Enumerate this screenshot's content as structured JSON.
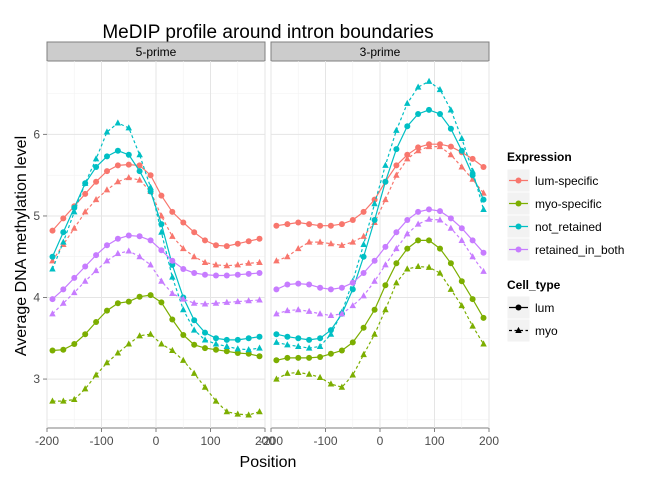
{
  "chart_data": {
    "type": "line",
    "title": "MeDIP profile around intron boundaries",
    "xlabel": "Position",
    "ylabel": "Average DNA methylation level",
    "xlim": [
      -200,
      200
    ],
    "ylim": [
      2.4,
      6.9
    ],
    "x_ticks": [
      -200,
      -100,
      0,
      100,
      200
    ],
    "y_ticks": [
      3,
      4,
      5,
      6
    ],
    "grid": true,
    "legend_position": "right",
    "facets": [
      "5-prime",
      "3-prime"
    ],
    "x": [
      -190,
      -170,
      -150,
      -130,
      -110,
      -90,
      -70,
      -50,
      -30,
      -10,
      10,
      30,
      50,
      70,
      90,
      110,
      130,
      150,
      170,
      190
    ],
    "legend": {
      "expression_title": "Expression",
      "expression_items": [
        {
          "label": "lum-specific",
          "color": "#F8766D"
        },
        {
          "label": "myo-specific",
          "color": "#7CAE00"
        },
        {
          "label": "not_retained",
          "color": "#00BFC4"
        },
        {
          "label": "retained_in_both",
          "color": "#C77CFF"
        }
      ],
      "cell_type_title": "Cell_type",
      "cell_type_items": [
        {
          "label": "lum",
          "shape": "circle",
          "line": "solid"
        },
        {
          "label": "myo",
          "shape": "triangle",
          "line": "dashed"
        }
      ]
    },
    "panels": [
      {
        "facet": "5-prime",
        "series": [
          {
            "expression": "lum-specific",
            "cell_type": "lum",
            "values": [
              4.82,
              4.97,
              5.12,
              5.27,
              5.42,
              5.55,
              5.62,
              5.63,
              5.62,
              5.5,
              5.25,
              5.05,
              4.92,
              4.8,
              4.7,
              4.64,
              4.63,
              4.66,
              4.69,
              4.72
            ]
          },
          {
            "expression": "lum-specific",
            "cell_type": "myo",
            "values": [
              4.45,
              4.65,
              4.85,
              5.05,
              5.2,
              5.32,
              5.42,
              5.47,
              5.44,
              5.3,
              5.0,
              4.75,
              4.6,
              4.5,
              4.43,
              4.4,
              4.39,
              4.4,
              4.42,
              4.43
            ]
          },
          {
            "expression": "myo-specific",
            "cell_type": "lum",
            "values": [
              3.35,
              3.36,
              3.43,
              3.55,
              3.7,
              3.84,
              3.93,
              3.95,
              4.01,
              4.03,
              3.94,
              3.73,
              3.54,
              3.42,
              3.38,
              3.36,
              3.34,
              3.32,
              3.31,
              3.28
            ]
          },
          {
            "expression": "myo-specific",
            "cell_type": "myo",
            "values": [
              2.73,
              2.73,
              2.75,
              2.88,
              3.05,
              3.2,
              3.32,
              3.43,
              3.53,
              3.55,
              3.43,
              3.35,
              3.23,
              3.07,
              2.9,
              2.73,
              2.6,
              2.57,
              2.56,
              2.6
            ]
          },
          {
            "expression": "not_retained",
            "cell_type": "lum",
            "values": [
              4.5,
              4.8,
              5.1,
              5.4,
              5.6,
              5.73,
              5.8,
              5.75,
              5.55,
              5.3,
              4.9,
              4.4,
              4.0,
              3.72,
              3.57,
              3.5,
              3.48,
              3.48,
              3.5,
              3.52
            ]
          },
          {
            "expression": "not_retained",
            "cell_type": "myo",
            "values": [
              4.35,
              4.68,
              5.05,
              5.4,
              5.7,
              6.03,
              6.14,
              6.08,
              5.75,
              5.35,
              4.8,
              4.25,
              3.85,
              3.6,
              3.48,
              3.43,
              3.4,
              3.37,
              3.36,
              3.38
            ]
          },
          {
            "expression": "retained_in_both",
            "cell_type": "lum",
            "values": [
              3.98,
              4.1,
              4.24,
              4.38,
              4.52,
              4.64,
              4.72,
              4.76,
              4.75,
              4.7,
              4.58,
              4.45,
              4.35,
              4.3,
              4.28,
              4.27,
              4.27,
              4.28,
              4.29,
              4.3
            ]
          },
          {
            "expression": "retained_in_both",
            "cell_type": "myo",
            "values": [
              3.8,
              3.93,
              4.06,
              4.2,
              4.33,
              4.45,
              4.54,
              4.57,
              4.5,
              4.4,
              4.2,
              4.05,
              3.98,
              3.93,
              3.92,
              3.93,
              3.94,
              3.95,
              3.96,
              3.97
            ]
          }
        ]
      },
      {
        "facet": "3-prime",
        "series": [
          {
            "expression": "lum-specific",
            "cell_type": "lum",
            "values": [
              4.88,
              4.9,
              4.92,
              4.9,
              4.88,
              4.88,
              4.9,
              4.95,
              5.05,
              5.2,
              5.42,
              5.62,
              5.75,
              5.84,
              5.88,
              5.88,
              5.85,
              5.78,
              5.7,
              5.6
            ]
          },
          {
            "expression": "lum-specific",
            "cell_type": "myo",
            "values": [
              4.45,
              4.5,
              4.6,
              4.68,
              4.68,
              4.66,
              4.64,
              4.68,
              4.75,
              4.92,
              5.2,
              5.5,
              5.7,
              5.8,
              5.85,
              5.85,
              5.75,
              5.6,
              5.45,
              5.28
            ]
          },
          {
            "expression": "myo-specific",
            "cell_type": "lum",
            "values": [
              3.23,
              3.26,
              3.26,
              3.26,
              3.27,
              3.31,
              3.35,
              3.45,
              3.63,
              3.85,
              4.15,
              4.42,
              4.6,
              4.7,
              4.7,
              4.6,
              4.42,
              4.2,
              3.98,
              3.75
            ]
          },
          {
            "expression": "myo-specific",
            "cell_type": "myo",
            "values": [
              3.0,
              3.07,
              3.08,
              3.06,
              3.02,
              2.94,
              2.9,
              3.05,
              3.3,
              3.55,
              3.85,
              4.18,
              4.35,
              4.38,
              4.37,
              4.3,
              4.1,
              3.9,
              3.65,
              3.43
            ]
          },
          {
            "expression": "not_retained",
            "cell_type": "lum",
            "values": [
              3.55,
              3.52,
              3.5,
              3.48,
              3.5,
              3.6,
              3.8,
              4.1,
              4.5,
              4.95,
              5.42,
              5.82,
              6.1,
              6.25,
              6.3,
              6.25,
              6.07,
              5.8,
              5.5,
              5.2
            ]
          },
          {
            "expression": "not_retained",
            "cell_type": "myo",
            "values": [
              3.45,
              3.42,
              3.4,
              3.38,
              3.4,
              3.55,
              3.82,
              4.2,
              4.65,
              5.15,
              5.62,
              6.05,
              6.38,
              6.58,
              6.65,
              6.55,
              6.3,
              5.95,
              5.55,
              5.08
            ]
          },
          {
            "expression": "retained_in_both",
            "cell_type": "lum",
            "values": [
              4.1,
              4.16,
              4.17,
              4.16,
              4.12,
              4.1,
              4.12,
              4.18,
              4.3,
              4.45,
              4.62,
              4.8,
              4.95,
              5.05,
              5.08,
              5.06,
              4.97,
              4.85,
              4.7,
              4.55
            ]
          },
          {
            "expression": "retained_in_both",
            "cell_type": "myo",
            "values": [
              3.8,
              3.84,
              3.85,
              3.83,
              3.8,
              3.78,
              3.8,
              3.9,
              4.02,
              4.2,
              4.4,
              4.6,
              4.78,
              4.9,
              4.96,
              4.95,
              4.85,
              4.7,
              4.5,
              4.32
            ]
          }
        ]
      }
    ]
  }
}
